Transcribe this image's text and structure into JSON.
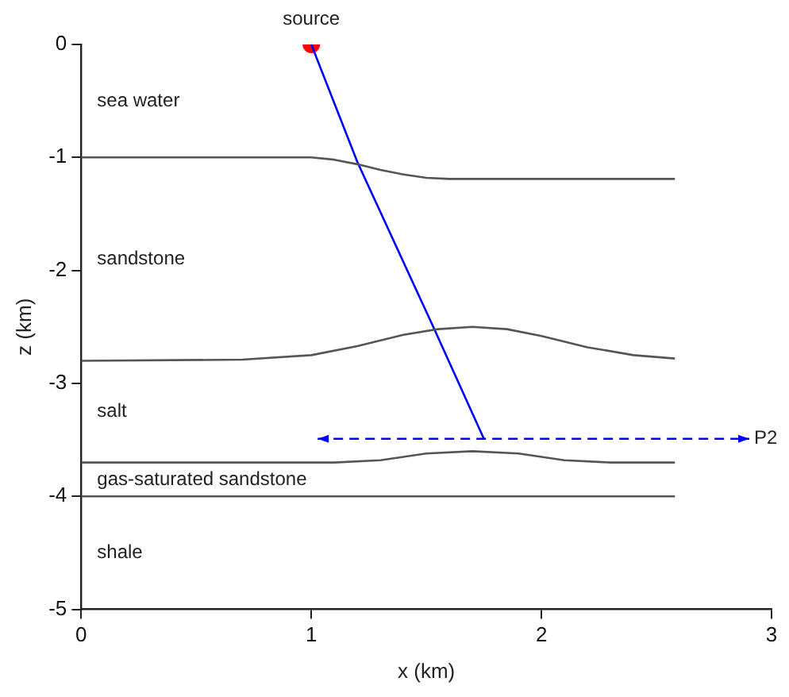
{
  "chart_data": {
    "type": "line",
    "xlabel": "x (km)",
    "ylabel": "z (km)",
    "xlim": [
      0,
      3
    ],
    "xticks": [
      0,
      1,
      2,
      3
    ],
    "ylim": [
      -5,
      0
    ],
    "yticks": [
      -5,
      -4,
      -3,
      -2,
      -1,
      0
    ],
    "grid": false,
    "legend": false,
    "marker": "none",
    "series": [
      {
        "color": "#555555",
        "x": [
          0,
          0.9,
          1.0,
          1.1,
          1.2,
          1.3,
          1.4,
          1.5,
          1.6,
          1.7,
          2.58
        ],
        "values": [
          -1,
          -1,
          -1.0,
          -1.02,
          -1.06,
          -1.11,
          -1.15,
          -1.18,
          -1.19,
          -1.19,
          -1.19
        ]
      },
      {
        "color": "#555555",
        "x": [
          0,
          0.7,
          1.0,
          1.2,
          1.4,
          1.55,
          1.7,
          1.85,
          2.0,
          2.2,
          2.4,
          2.58
        ],
        "values": [
          -2.8,
          -2.79,
          -2.75,
          -2.67,
          -2.57,
          -2.52,
          -2.5,
          -2.52,
          -2.58,
          -2.68,
          -2.75,
          -2.78
        ]
      },
      {
        "color": "#555555",
        "x": [
          0,
          1.1,
          1.3,
          1.5,
          1.7,
          1.9,
          2.1,
          2.3,
          2.58
        ],
        "values": [
          -3.7,
          -3.7,
          -3.68,
          -3.62,
          -3.6,
          -3.62,
          -3.68,
          -3.7,
          -3.7
        ]
      },
      {
        "color": "#555555",
        "x": [
          0,
          2.58
        ],
        "values": [
          -4,
          -4
        ]
      },
      {
        "color": "#0000ff",
        "x": [
          1,
          1.2,
          1.53,
          1.75
        ],
        "values": [
          0,
          -1.04,
          -2.5,
          -3.49
        ]
      },
      {
        "name": "source",
        "type": "scatter",
        "marker": "circle",
        "color": "#ff0000",
        "x": [
          1
        ],
        "values": [
          0
        ]
      }
    ],
    "annotations": [
      "sea water",
      "sandstone",
      "salt",
      "gas-saturated sandstone",
      "shale",
      "P2"
    ]
  }
}
